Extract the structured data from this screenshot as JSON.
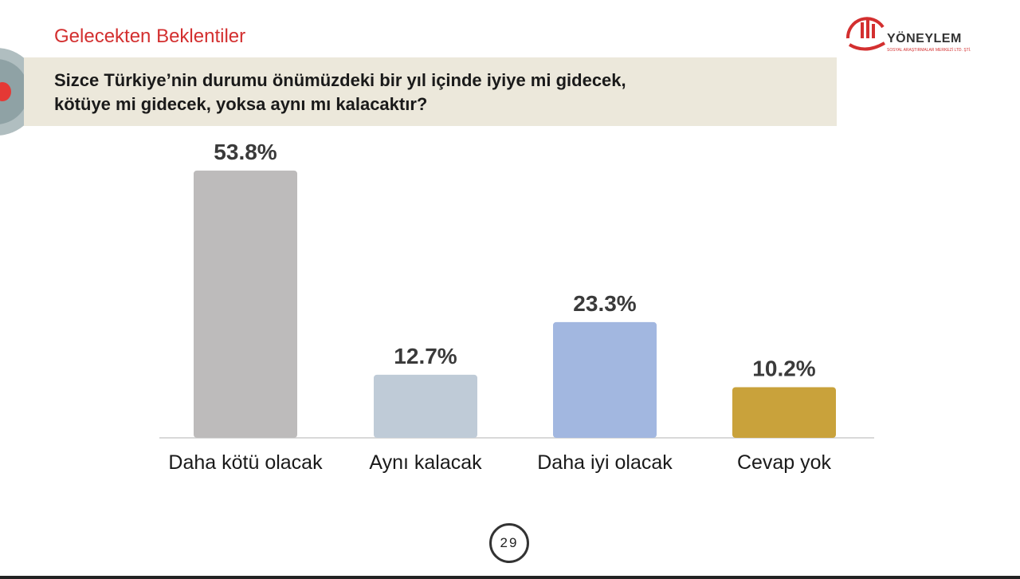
{
  "header": {
    "section_title": "Gelecekten Beklentiler",
    "question_line1": "Sizce Türkiye’nin durumu önümüzdeki bir yıl içinde iyiye mi gidecek,",
    "question_line2": "kötüye mi gidecek, yoksa aynı mı kalacaktır?"
  },
  "logo": {
    "brand": "YÖNEYLEM",
    "tagline": "SOSYAL ARAŞTIRMALAR MERKEZİ LTD. ŞTİ."
  },
  "colors": {
    "accent": "#d32f2f",
    "band": "#ece8db"
  },
  "chart_data": {
    "type": "bar",
    "categories": [
      "Daha kötü olacak",
      "Aynı kalacak",
      "Daha iyi olacak",
      "Cevap yok"
    ],
    "values": [
      53.8,
      12.7,
      23.3,
      10.2
    ],
    "value_labels": [
      "53.8%",
      "12.7%",
      "23.3%",
      "10.2%"
    ],
    "colors": [
      "#bdbbbb",
      "#bfcbd7",
      "#a2b7e0",
      "#c9a23b"
    ],
    "title": "",
    "xlabel": "",
    "ylabel": "",
    "ylim": [
      0,
      60
    ],
    "grid": false,
    "legend": "none"
  },
  "footer": {
    "page_number": "29"
  }
}
